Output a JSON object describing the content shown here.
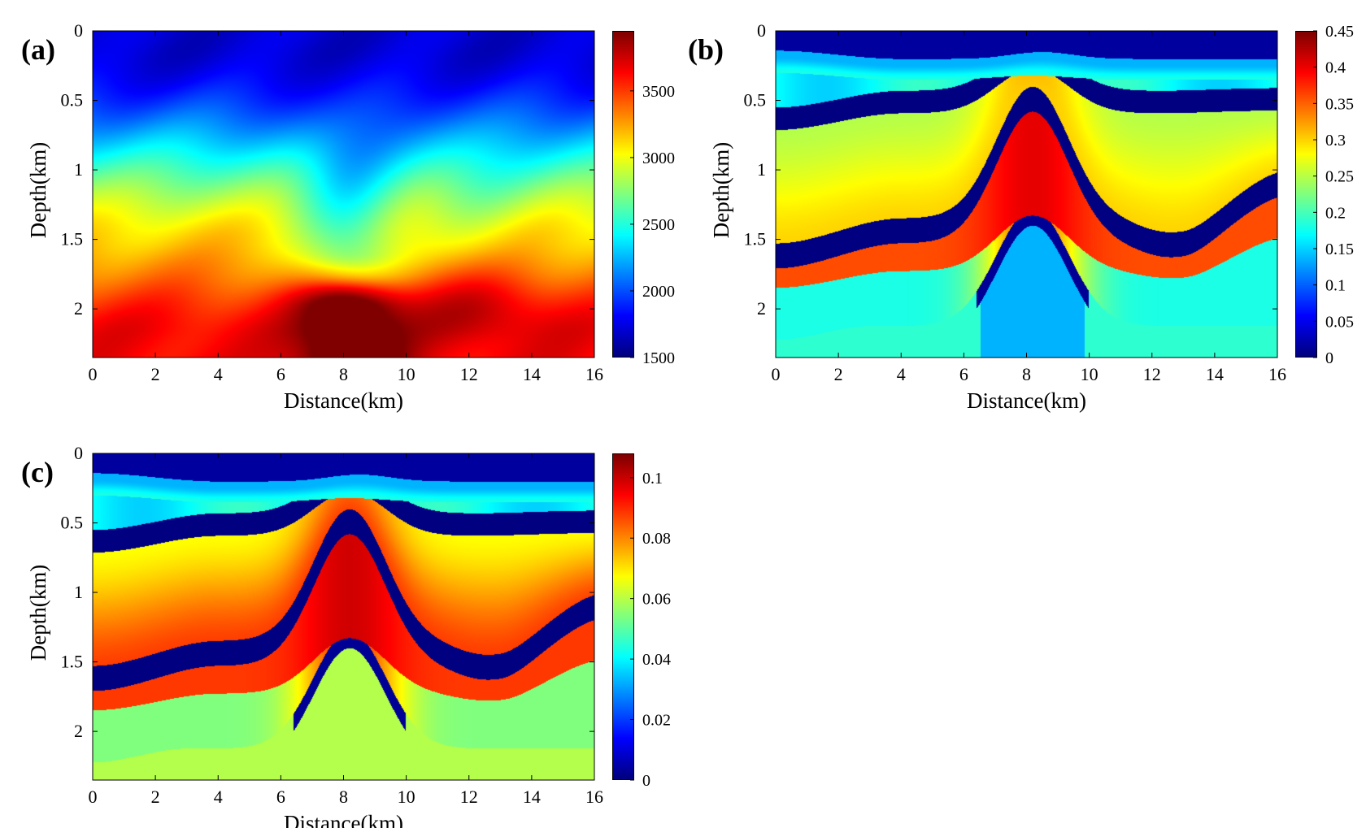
{
  "chart_data": [
    {
      "type": "heatmap",
      "panel_label": "(a)",
      "xlabel": "Distance(km)",
      "ylabel": "Depth(km)",
      "xlim": [
        0,
        16
      ],
      "ylim": [
        2.35,
        0
      ],
      "x_ticks": [
        "0",
        "2",
        "4",
        "6",
        "8",
        "10",
        "12",
        "14",
        "16"
      ],
      "y_ticks": [
        "0",
        "0.5",
        "1",
        "1.5",
        "2"
      ],
      "y_tick_values": [
        0,
        0.5,
        1,
        1.5,
        2
      ],
      "colorbar": {
        "range": [
          1500,
          3950
        ],
        "ticks": [
          "1500",
          "2000",
          "2500",
          "3000",
          "3500"
        ],
        "tick_values": [
          1500,
          2000,
          2500,
          3000,
          3500
        ]
      },
      "colormap": "jet",
      "field": "velocity"
    },
    {
      "type": "heatmap",
      "panel_label": "(b)",
      "xlabel": "Distance(km)",
      "ylabel": "Depth(km)",
      "xlim": [
        0,
        16
      ],
      "ylim": [
        2.35,
        0
      ],
      "x_ticks": [
        "0",
        "2",
        "4",
        "6",
        "8",
        "10",
        "12",
        "14",
        "16"
      ],
      "y_ticks": [
        "0",
        "0.5",
        "1",
        "1.5",
        "2"
      ],
      "y_tick_values": [
        0,
        0.5,
        1,
        1.5,
        2
      ],
      "colorbar": {
        "range": [
          0,
          0.45
        ],
        "ticks": [
          "0",
          "0.05",
          "0.1",
          "0.15",
          "0.2",
          "0.25",
          "0.3",
          "0.35",
          "0.4",
          "0.45"
        ],
        "tick_values": [
          0,
          0.05,
          0.1,
          0.15,
          0.2,
          0.25,
          0.3,
          0.35,
          0.4,
          0.45
        ]
      },
      "colormap": "jet",
      "field": "layers"
    },
    {
      "type": "heatmap",
      "panel_label": "(c)",
      "xlabel": "Distance(km)",
      "ylabel": "Depth(km)",
      "xlim": [
        0,
        16
      ],
      "ylim": [
        2.35,
        0
      ],
      "x_ticks": [
        "0",
        "2",
        "4",
        "6",
        "8",
        "10",
        "12",
        "14",
        "16"
      ],
      "y_ticks": [
        "0",
        "0.5",
        "1",
        "1.5",
        "2"
      ],
      "y_tick_values": [
        0,
        0.5,
        1,
        1.5,
        2
      ],
      "colorbar": {
        "range": [
          0,
          0.108
        ],
        "ticks": [
          "0",
          "0.02",
          "0.04",
          "0.06",
          "0.08",
          "0.1"
        ],
        "tick_values": [
          0,
          0.02,
          0.04,
          0.06,
          0.08,
          0.1
        ]
      },
      "colormap": "jet",
      "field": "layers"
    }
  ]
}
